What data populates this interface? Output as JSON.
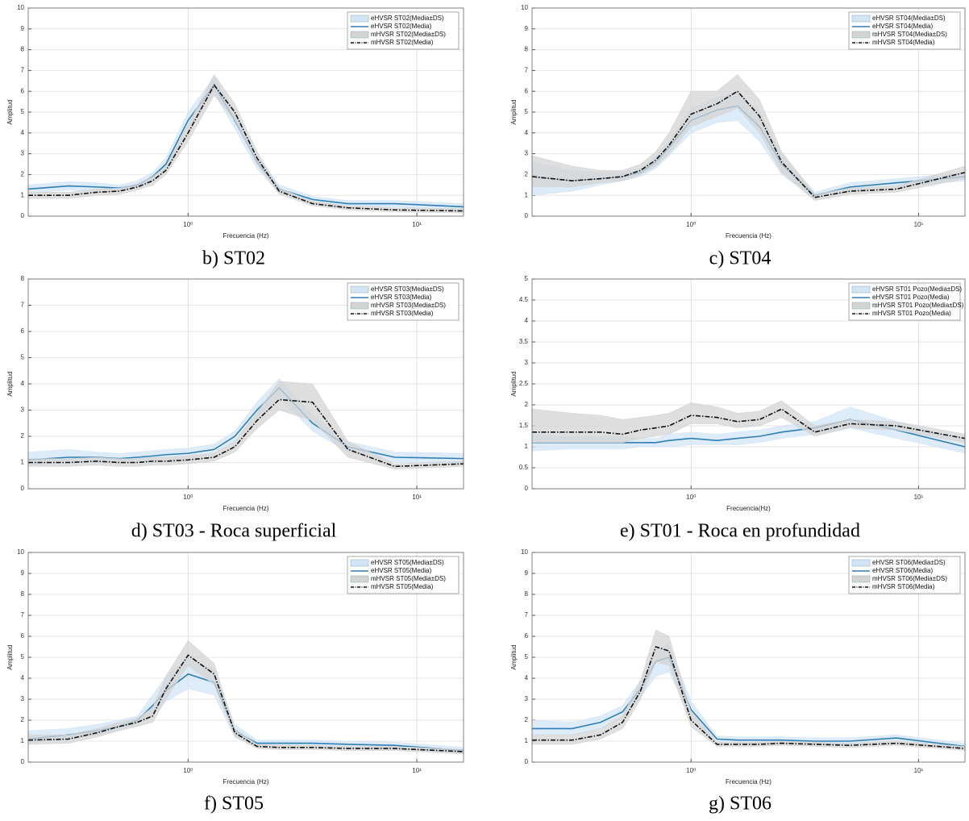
{
  "chart_data": [
    {
      "type": "line",
      "title": "b) ST02",
      "xlabel": "Frecuencia (Hz)",
      "ylabel": "Amplitud",
      "xscale": "log",
      "grid": true,
      "legend": "upper right",
      "x": [
        0.2,
        0.3,
        0.4,
        0.5,
        0.6,
        0.7,
        0.8,
        1,
        1.3,
        1.6,
        2,
        2.5,
        3.5,
        5,
        8,
        16
      ],
      "xlim": [
        0.2,
        16
      ],
      "xticks": [
        {
          "value": 1,
          "label": "10⁰"
        },
        {
          "value": 10,
          "label": "10¹"
        }
      ],
      "ylim": [
        0,
        10
      ],
      "yticks": [
        0,
        1,
        2,
        3,
        4,
        5,
        6,
        7,
        8,
        9,
        10
      ],
      "series": [
        {
          "name": "eHVSR ST02(Media±DS)",
          "color": "#d3e4f6",
          "style": "band",
          "lower": [
            1.1,
            1.25,
            1.2,
            1.2,
            1.3,
            1.7,
            2.2,
            4.2,
            5.9,
            4.2,
            2.3,
            1.1,
            0.65,
            0.45,
            0.45,
            0.3
          ],
          "upper": [
            1.5,
            1.65,
            1.6,
            1.5,
            1.7,
            2.1,
            2.8,
            5.0,
            6.7,
            5.0,
            2.9,
            1.5,
            0.95,
            0.75,
            0.75,
            0.6
          ]
        },
        {
          "name": "eHVSR ST02(Media)",
          "color": "#2f7fb6",
          "style": "solid",
          "values": [
            1.3,
            1.45,
            1.4,
            1.35,
            1.5,
            1.9,
            2.5,
            4.6,
            6.3,
            4.6,
            2.6,
            1.3,
            0.8,
            0.6,
            0.6,
            0.45
          ]
        },
        {
          "name": "mHVSR ST02(Media±DS)",
          "color": "#d4d4d4",
          "style": "band",
          "lower": [
            0.85,
            0.85,
            1.0,
            1.05,
            1.25,
            1.5,
            2.0,
            3.6,
            5.8,
            4.6,
            2.5,
            1.05,
            0.5,
            0.3,
            0.2,
            0.15
          ],
          "upper": [
            1.15,
            1.15,
            1.3,
            1.35,
            1.55,
            1.9,
            2.4,
            4.4,
            6.8,
            5.4,
            3.1,
            1.35,
            0.7,
            0.5,
            0.4,
            0.35
          ]
        },
        {
          "name": "mHVSR ST02(Media)",
          "color": "#111111",
          "style": "dashdot",
          "values": [
            1.0,
            1.0,
            1.15,
            1.2,
            1.4,
            1.7,
            2.2,
            4.0,
            6.3,
            5.0,
            2.8,
            1.2,
            0.6,
            0.4,
            0.3,
            0.25
          ]
        }
      ]
    },
    {
      "type": "line",
      "title": "c) ST04",
      "xlabel": "Frecuencia (Hz)",
      "ylabel": "Amplitud",
      "xscale": "log",
      "grid": true,
      "legend": "upper right",
      "x": [
        0.2,
        0.3,
        0.4,
        0.5,
        0.6,
        0.7,
        0.8,
        1,
        1.3,
        1.6,
        2,
        2.5,
        3.5,
        5,
        8,
        16
      ],
      "xlim": [
        0.2,
        16
      ],
      "xticks": [
        {
          "value": 1,
          "label": "10⁰"
        },
        {
          "value": 10,
          "label": "10¹"
        }
      ],
      "ylim": [
        0,
        10
      ],
      "yticks": [
        0,
        1,
        2,
        3,
        4,
        5,
        6,
        7,
        8,
        9,
        10
      ],
      "series": [
        {
          "name": "eHVSR ST04(Media±DS)",
          "color": "#d3e4f6",
          "style": "band",
          "lower": [
            1.0,
            1.2,
            1.5,
            1.7,
            1.9,
            2.3,
            2.9,
            4.0,
            4.5,
            4.6,
            3.6,
            2.0,
            0.85,
            1.2,
            1.4,
            1.7
          ],
          "upper": [
            2.6,
            2.2,
            2.1,
            2.1,
            2.3,
            2.9,
            3.6,
            5.2,
            5.7,
            6.0,
            5.0,
            3.0,
            1.15,
            1.6,
            1.8,
            2.1
          ]
        },
        {
          "name": "eHVSR ST04(Media)",
          "color": "#2f7fb6",
          "style": "solid",
          "values": [
            1.9,
            1.7,
            1.8,
            1.9,
            2.1,
            2.6,
            3.3,
            4.6,
            5.1,
            5.3,
            4.3,
            2.5,
            1.0,
            1.4,
            1.6,
            1.9
          ]
        },
        {
          "name": "mHVSR ST04(Media±DS)",
          "color": "#d4d4d4",
          "style": "band",
          "lower": [
            1.4,
            1.4,
            1.6,
            1.7,
            2.0,
            2.4,
            3.0,
            4.3,
            4.8,
            5.2,
            4.0,
            2.1,
            0.75,
            1.05,
            1.15,
            1.8
          ],
          "upper": [
            2.9,
            2.4,
            2.2,
            2.2,
            2.5,
            3.1,
            4.0,
            6.0,
            6.0,
            6.8,
            5.6,
            3.1,
            1.05,
            1.35,
            1.45,
            2.4
          ]
        },
        {
          "name": "mHVSR ST04(Media)",
          "color": "#111111",
          "style": "dashdot",
          "values": [
            1.9,
            1.7,
            1.8,
            1.9,
            2.2,
            2.7,
            3.4,
            4.9,
            5.4,
            6.0,
            4.8,
            2.6,
            0.9,
            1.2,
            1.3,
            2.1
          ]
        }
      ]
    },
    {
      "type": "line",
      "title": "d) ST03 - Roca superficial",
      "xlabel": "Frecuencia (Hz)",
      "ylabel": "Amplitud",
      "xscale": "log",
      "grid": true,
      "legend": "upper right",
      "x": [
        0.2,
        0.3,
        0.4,
        0.5,
        0.6,
        0.7,
        0.8,
        1,
        1.3,
        1.6,
        2,
        2.5,
        3.5,
        5,
        8,
        16
      ],
      "xlim": [
        0.2,
        16
      ],
      "xticks": [
        {
          "value": 1,
          "label": "10⁰"
        },
        {
          "value": 10,
          "label": "10¹"
        }
      ],
      "ylim": [
        0,
        8
      ],
      "yticks": [
        0,
        1,
        2,
        3,
        4,
        5,
        6,
        7,
        8
      ],
      "series": [
        {
          "name": "eHVSR ST03(Media±DS)",
          "color": "#d3e4f6",
          "style": "band",
          "lower": [
            0.9,
            1.0,
            1.0,
            0.95,
            1.0,
            1.05,
            1.1,
            1.15,
            1.3,
            1.8,
            2.7,
            3.5,
            2.2,
            1.4,
            1.0,
            0.95
          ],
          "upper": [
            1.4,
            1.5,
            1.4,
            1.35,
            1.4,
            1.45,
            1.5,
            1.55,
            1.7,
            2.2,
            3.3,
            4.2,
            2.8,
            1.8,
            1.4,
            1.35
          ]
        },
        {
          "name": "eHVSR ST03(Media)",
          "color": "#2f7fb6",
          "style": "solid",
          "values": [
            1.1,
            1.2,
            1.2,
            1.15,
            1.2,
            1.25,
            1.3,
            1.35,
            1.5,
            2.0,
            3.0,
            3.85,
            2.5,
            1.6,
            1.2,
            1.15
          ]
        },
        {
          "name": "mHVSR ST03(Media±DS)",
          "color": "#d4d4d4",
          "style": "band",
          "lower": [
            0.85,
            0.85,
            0.9,
            0.85,
            0.85,
            0.9,
            0.9,
            0.95,
            1.05,
            1.4,
            2.3,
            3.0,
            2.6,
            1.2,
            0.75,
            0.85
          ],
          "upper": [
            1.15,
            1.15,
            1.2,
            1.15,
            1.15,
            1.2,
            1.2,
            1.25,
            1.35,
            1.8,
            2.9,
            4.1,
            4.0,
            1.8,
            0.95,
            1.05
          ]
        },
        {
          "name": "mHVSR ST03(Media)",
          "color": "#111111",
          "style": "dashdot",
          "values": [
            1.0,
            1.0,
            1.05,
            1.0,
            1.0,
            1.05,
            1.05,
            1.1,
            1.2,
            1.6,
            2.6,
            3.4,
            3.3,
            1.5,
            0.85,
            0.95
          ]
        }
      ]
    },
    {
      "type": "line",
      "title": "e) ST01 - Roca en profundidad",
      "xlabel": "Frecuencia(Hz)",
      "ylabel": "Amplitud",
      "xscale": "log",
      "grid": true,
      "legend": "upper right",
      "x": [
        0.2,
        0.3,
        0.4,
        0.5,
        0.6,
        0.7,
        0.8,
        1,
        1.3,
        1.6,
        2,
        2.5,
        3.5,
        5,
        8,
        16
      ],
      "xlim": [
        0.2,
        16
      ],
      "xticks": [
        {
          "value": 1,
          "label": "10⁰"
        },
        {
          "value": 10,
          "label": "10¹"
        }
      ],
      "ylim": [
        0,
        5
      ],
      "yticks": [
        0,
        0.5,
        1,
        1.5,
        2,
        2.5,
        3,
        3.5,
        4,
        4.5,
        5
      ],
      "series": [
        {
          "name": "eHVSR ST01 Pozo(Media±DS)",
          "color": "#d3e4f6",
          "style": "band",
          "lower": [
            0.9,
            0.95,
            0.95,
            0.95,
            1.0,
            1.0,
            1.0,
            1.05,
            1.05,
            1.05,
            1.1,
            1.2,
            1.3,
            1.45,
            1.2,
            0.85
          ],
          "upper": [
            1.3,
            1.25,
            1.25,
            1.25,
            1.2,
            1.2,
            1.3,
            1.35,
            1.3,
            1.35,
            1.4,
            1.5,
            1.6,
            1.95,
            1.6,
            1.15
          ]
        },
        {
          "name": "eHVSR ST01 Pozo(Media)",
          "color": "#2f7fb6",
          "style": "solid",
          "values": [
            1.1,
            1.1,
            1.1,
            1.1,
            1.1,
            1.1,
            1.15,
            1.2,
            1.15,
            1.2,
            1.25,
            1.35,
            1.45,
            1.65,
            1.4,
            1.0
          ]
        },
        {
          "name": "mHVSR ST01 Pozo(Media±DS)",
          "color": "#d4d4d4",
          "style": "band",
          "lower": [
            1.1,
            1.1,
            1.1,
            1.1,
            1.2,
            1.25,
            1.3,
            1.55,
            1.55,
            1.45,
            1.5,
            1.7,
            1.25,
            1.45,
            1.4,
            1.1
          ],
          "upper": [
            1.9,
            1.8,
            1.75,
            1.65,
            1.7,
            1.75,
            1.8,
            2.05,
            1.95,
            1.8,
            1.85,
            2.1,
            1.5,
            1.65,
            1.6,
            1.3
          ]
        },
        {
          "name": "mHVSR ST01 Pozo(Media)",
          "color": "#111111",
          "style": "dashdot",
          "values": [
            1.35,
            1.35,
            1.35,
            1.3,
            1.4,
            1.45,
            1.5,
            1.75,
            1.7,
            1.6,
            1.65,
            1.9,
            1.35,
            1.55,
            1.5,
            1.2
          ]
        }
      ]
    },
    {
      "type": "line",
      "title": "f) ST05",
      "xlabel": "Frecuencia (Hz)",
      "ylabel": "Amplitud",
      "xscale": "log",
      "grid": true,
      "legend": "upper right",
      "x": [
        0.2,
        0.3,
        0.4,
        0.5,
        0.6,
        0.7,
        0.8,
        1,
        1.3,
        1.6,
        2,
        2.5,
        3.5,
        5,
        8,
        16
      ],
      "xlim": [
        0.2,
        16
      ],
      "xticks": [
        {
          "value": 1,
          "label": "10⁰"
        },
        {
          "value": 10,
          "label": "10¹"
        }
      ],
      "ylim": [
        0,
        10
      ],
      "yticks": [
        0,
        1,
        2,
        3,
        4,
        5,
        6,
        7,
        8,
        9,
        10
      ],
      "series": [
        {
          "name": "eHVSR ST05(Media±DS)",
          "color": "#d3e4f6",
          "style": "band",
          "lower": [
            0.9,
            1.1,
            1.3,
            1.5,
            1.8,
            2.3,
            2.9,
            3.5,
            3.2,
            1.2,
            0.75,
            0.75,
            0.75,
            0.7,
            0.65,
            0.4
          ],
          "upper": [
            1.5,
            1.6,
            1.8,
            2.0,
            2.2,
            3.2,
            4.1,
            5.0,
            4.4,
            1.8,
            1.05,
            1.05,
            1.05,
            1.0,
            0.95,
            0.7
          ]
        },
        {
          "name": "eHVSR ST05(Media)",
          "color": "#2f7fb6",
          "style": "solid",
          "values": [
            1.1,
            1.3,
            1.5,
            1.7,
            2.0,
            2.7,
            3.4,
            4.2,
            3.8,
            1.5,
            0.9,
            0.9,
            0.9,
            0.85,
            0.8,
            0.55
          ]
        },
        {
          "name": "mHVSR ST05(Media±DS)",
          "color": "#d4d4d4",
          "style": "band",
          "lower": [
            0.85,
            0.9,
            1.2,
            1.5,
            1.7,
            1.9,
            3.0,
            4.6,
            3.7,
            1.2,
            0.65,
            0.6,
            0.6,
            0.55,
            0.55,
            0.4
          ],
          "upper": [
            1.3,
            1.3,
            1.6,
            1.9,
            2.1,
            2.6,
            4.1,
            5.8,
            4.7,
            1.6,
            0.85,
            0.8,
            0.8,
            0.75,
            0.75,
            0.6
          ]
        },
        {
          "name": "mHVSR ST05(Media)",
          "color": "#111111",
          "style": "dashdot",
          "values": [
            1.05,
            1.1,
            1.4,
            1.7,
            1.9,
            2.2,
            3.5,
            5.1,
            4.2,
            1.4,
            0.75,
            0.7,
            0.7,
            0.65,
            0.65,
            0.5
          ]
        }
      ]
    },
    {
      "type": "line",
      "title": "g) ST06",
      "xlabel": "Frecuencia (Hz)",
      "ylabel": "Amplitud",
      "xscale": "log",
      "grid": true,
      "legend": "upper right",
      "x": [
        0.2,
        0.3,
        0.4,
        0.5,
        0.6,
        0.7,
        0.8,
        1,
        1.3,
        1.6,
        2,
        2.5,
        3.5,
        5,
        8,
        16
      ],
      "xlim": [
        0.2,
        16
      ],
      "xticks": [
        {
          "value": 1,
          "label": "10⁰"
        },
        {
          "value": 10,
          "label": "10¹"
        }
      ],
      "ylim": [
        0,
        10
      ],
      "yticks": [
        0,
        1,
        2,
        3,
        4,
        5,
        6,
        7,
        8,
        9,
        10
      ],
      "series": [
        {
          "name": "eHVSR ST06(Media±DS)",
          "color": "#d3e4f6",
          "style": "band",
          "lower": [
            1.3,
            1.3,
            1.6,
            2.1,
            3.1,
            4.1,
            4.3,
            2.1,
            0.95,
            0.9,
            0.9,
            0.9,
            0.85,
            0.85,
            1.0,
            0.6
          ],
          "upper": [
            2.0,
            1.9,
            2.2,
            2.7,
            3.9,
            5.4,
            5.6,
            2.9,
            1.25,
            1.2,
            1.2,
            1.2,
            1.15,
            1.15,
            1.3,
            0.9
          ]
        },
        {
          "name": "eHVSR ST06(Media)",
          "color": "#2f7fb6",
          "style": "solid",
          "values": [
            1.6,
            1.6,
            1.9,
            2.4,
            3.5,
            4.8,
            5.0,
            2.5,
            1.1,
            1.05,
            1.05,
            1.05,
            1.0,
            1.0,
            1.15,
            0.75
          ]
        },
        {
          "name": "mHVSR ST06(Media±DS)",
          "color": "#d4d4d4",
          "style": "band",
          "lower": [
            0.85,
            0.85,
            1.1,
            1.6,
            3.0,
            4.8,
            4.6,
            1.7,
            0.75,
            0.75,
            0.75,
            0.8,
            0.75,
            0.7,
            0.8,
            0.55
          ],
          "upper": [
            1.3,
            1.3,
            1.6,
            2.2,
            3.9,
            6.3,
            6.0,
            2.4,
            0.95,
            0.95,
            0.95,
            1.0,
            0.95,
            0.9,
            1.0,
            0.75
          ]
        },
        {
          "name": "mHVSR ST06(Media)",
          "color": "#111111",
          "style": "dashdot",
          "values": [
            1.05,
            1.05,
            1.3,
            1.9,
            3.4,
            5.5,
            5.3,
            2.0,
            0.85,
            0.85,
            0.85,
            0.9,
            0.85,
            0.8,
            0.9,
            0.65
          ]
        }
      ]
    }
  ]
}
